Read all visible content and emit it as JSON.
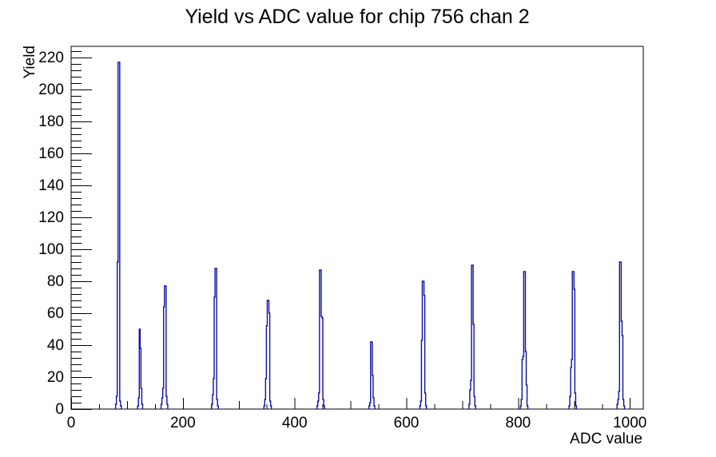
{
  "chart_data": {
    "type": "bar",
    "title": "Yield vs ADC value for chip 756 chan 2",
    "xlabel": "ADC value",
    "ylabel": "Yield",
    "xlim": [
      0,
      1024
    ],
    "ylim": [
      0,
      227
    ],
    "grid": false,
    "legend": false,
    "line_color": "#0f0fa4",
    "axis_color": "#000000",
    "x_major_ticks": [
      0,
      200,
      400,
      600,
      800,
      1000
    ],
    "x_tick_labels": [
      "0",
      "200",
      "400",
      "600",
      "800",
      "1000"
    ],
    "x_medium_tick_step": 100,
    "x_minor_tick_step": 50,
    "y_major_ticks": [
      0,
      20,
      40,
      60,
      80,
      100,
      120,
      140,
      160,
      180,
      200,
      220
    ],
    "y_tick_labels": [
      "0",
      "20",
      "40",
      "60",
      "80",
      "100",
      "120",
      "140",
      "160",
      "180",
      "200",
      "220"
    ],
    "y_minor_tick_step": 4,
    "peaks": [
      {
        "adc": 85,
        "yield": 217
      },
      {
        "adc": 123,
        "yield": 50
      },
      {
        "adc": 167,
        "yield": 77
      },
      {
        "adc": 258,
        "yield": 88
      },
      {
        "adc": 352,
        "yield": 68
      },
      {
        "adc": 446,
        "yield": 87
      },
      {
        "adc": 538,
        "yield": 42
      },
      {
        "adc": 630,
        "yield": 80
      },
      {
        "adc": 718,
        "yield": 90
      },
      {
        "adc": 811,
        "yield": 86
      },
      {
        "adc": 898,
        "yield": 86
      },
      {
        "adc": 983,
        "yield": 92
      }
    ],
    "spikes": [
      {
        "start": 79.5,
        "bin_width": 1.5,
        "heights": [
          3,
          8,
          92,
          217,
          217,
          5,
          2
        ]
      },
      {
        "start": 119.0,
        "bin_width": 1.5,
        "heights": [
          2,
          7,
          50,
          38,
          13,
          3
        ]
      },
      {
        "start": 161.0,
        "bin_width": 1.5,
        "heights": [
          3,
          7,
          13,
          64,
          77,
          77,
          8,
          3
        ]
      },
      {
        "start": 251.5,
        "bin_width": 1.5,
        "heights": [
          3,
          9,
          19,
          70,
          88,
          88,
          6,
          2
        ]
      },
      {
        "start": 345.0,
        "bin_width": 1.5,
        "heights": [
          2,
          6,
          19,
          52,
          68,
          68,
          60,
          5,
          2
        ]
      },
      {
        "start": 440.0,
        "bin_width": 1.5,
        "heights": [
          2,
          5,
          10,
          87,
          87,
          58,
          57,
          6,
          2
        ]
      },
      {
        "start": 533.0,
        "bin_width": 1.5,
        "heights": [
          2,
          4,
          42,
          42,
          21,
          7,
          2
        ]
      },
      {
        "start": 624.0,
        "bin_width": 1.5,
        "heights": [
          2,
          5,
          43,
          80,
          80,
          71,
          10,
          2
        ]
      },
      {
        "start": 712.0,
        "bin_width": 1.5,
        "heights": [
          3,
          12,
          18,
          90,
          90,
          53,
          8,
          2
        ]
      },
      {
        "start": 804.0,
        "bin_width": 1.5,
        "heights": [
          2,
          6,
          31,
          33,
          86,
          86,
          36,
          15,
          2
        ]
      },
      {
        "start": 891.0,
        "bin_width": 1.5,
        "heights": [
          2,
          8,
          26,
          31,
          86,
          86,
          75,
          10,
          2
        ]
      },
      {
        "start": 977.0,
        "bin_width": 1.5,
        "heights": [
          3,
          6,
          11,
          92,
          92,
          55,
          46,
          6,
          2
        ]
      }
    ]
  }
}
